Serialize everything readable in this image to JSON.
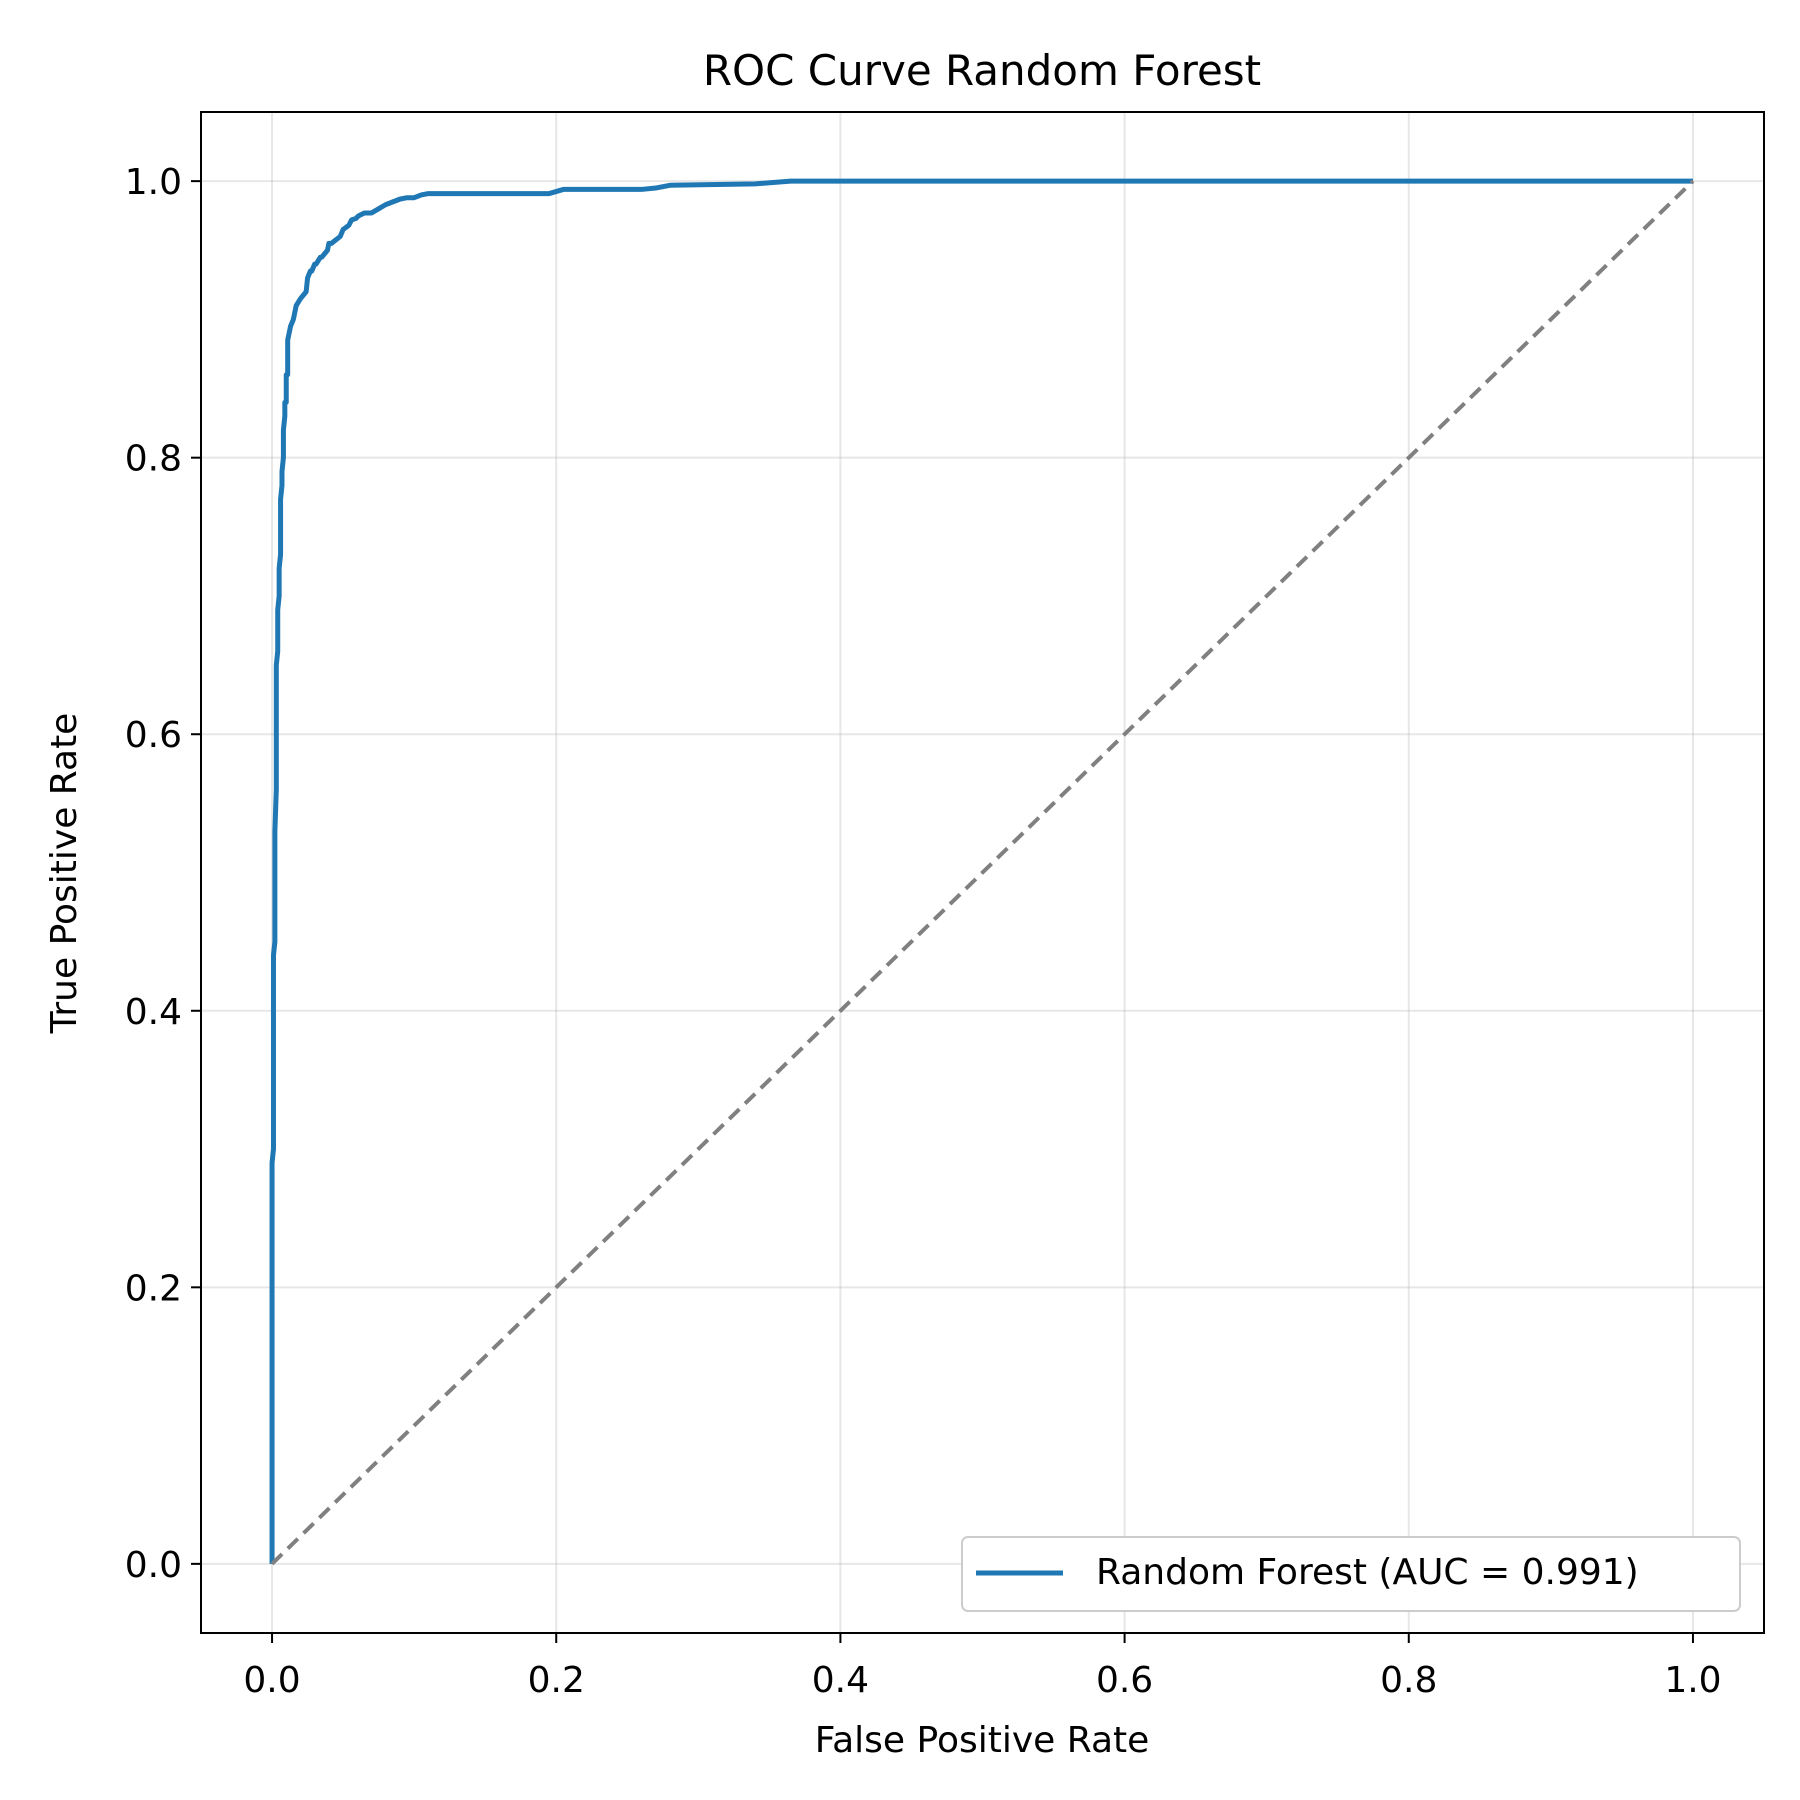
{
  "chart_data": {
    "type": "line",
    "title": "ROC Curve Random Forest",
    "xlabel": "False Positive Rate",
    "ylabel": "True Positive Rate",
    "xlim": [
      -0.05,
      1.05
    ],
    "ylim": [
      -0.05,
      1.05
    ],
    "grid": true,
    "x_ticks": [
      0.0,
      0.2,
      0.4,
      0.6,
      0.8,
      1.0
    ],
    "y_ticks": [
      0.0,
      0.2,
      0.4,
      0.6,
      0.8,
      1.0
    ],
    "x_tick_labels": [
      "0.0",
      "0.2",
      "0.4",
      "0.6",
      "0.8",
      "1.0"
    ],
    "y_tick_labels": [
      "0.0",
      "0.2",
      "0.4",
      "0.6",
      "0.8",
      "1.0"
    ],
    "legend_position": "bottom-right",
    "series": [
      {
        "name": "Random Forest",
        "label": "Random Forest (AUC = 0.991)",
        "color": "#1f77b4",
        "style": "solid",
        "x": [
          0.0,
          0.0,
          0.001,
          0.001,
          0.002,
          0.002,
          0.003,
          0.003,
          0.004,
          0.004,
          0.005,
          0.005,
          0.006,
          0.006,
          0.007,
          0.007,
          0.008,
          0.008,
          0.009,
          0.009,
          0.01,
          0.01,
          0.011,
          0.011,
          0.012,
          0.012,
          0.013,
          0.013,
          0.015,
          0.015,
          0.017,
          0.017,
          0.02,
          0.02,
          0.024,
          0.025,
          0.027,
          0.028,
          0.03,
          0.031,
          0.034,
          0.035,
          0.039,
          0.04,
          0.042,
          0.043,
          0.048,
          0.05,
          0.054,
          0.056,
          0.059,
          0.061,
          0.065,
          0.07,
          0.075,
          0.08,
          0.085,
          0.09,
          0.095,
          0.1,
          0.105,
          0.11,
          0.15,
          0.195,
          0.205,
          0.22,
          0.26,
          0.27,
          0.28,
          0.34,
          0.365,
          0.5,
          0.7,
          0.9,
          1.0
        ],
        "y": [
          0.0,
          0.29,
          0.3,
          0.44,
          0.45,
          0.53,
          0.56,
          0.65,
          0.66,
          0.69,
          0.7,
          0.72,
          0.73,
          0.77,
          0.78,
          0.79,
          0.8,
          0.82,
          0.83,
          0.84,
          0.84,
          0.86,
          0.86,
          0.885,
          0.89,
          0.89,
          0.895,
          0.895,
          0.9,
          0.9,
          0.91,
          0.91,
          0.915,
          0.915,
          0.92,
          0.93,
          0.935,
          0.935,
          0.94,
          0.94,
          0.945,
          0.945,
          0.95,
          0.955,
          0.955,
          0.956,
          0.96,
          0.965,
          0.968,
          0.972,
          0.973,
          0.975,
          0.977,
          0.977,
          0.98,
          0.983,
          0.985,
          0.987,
          0.988,
          0.988,
          0.99,
          0.991,
          0.991,
          0.991,
          0.994,
          0.994,
          0.994,
          0.995,
          0.997,
          0.998,
          1.0,
          1.0,
          1.0,
          1.0,
          1.0
        ]
      },
      {
        "name": "Random",
        "label": "",
        "color": "#808080",
        "style": "dashed",
        "x": [
          0.0,
          1.0
        ],
        "y": [
          0.0,
          1.0
        ]
      }
    ]
  }
}
